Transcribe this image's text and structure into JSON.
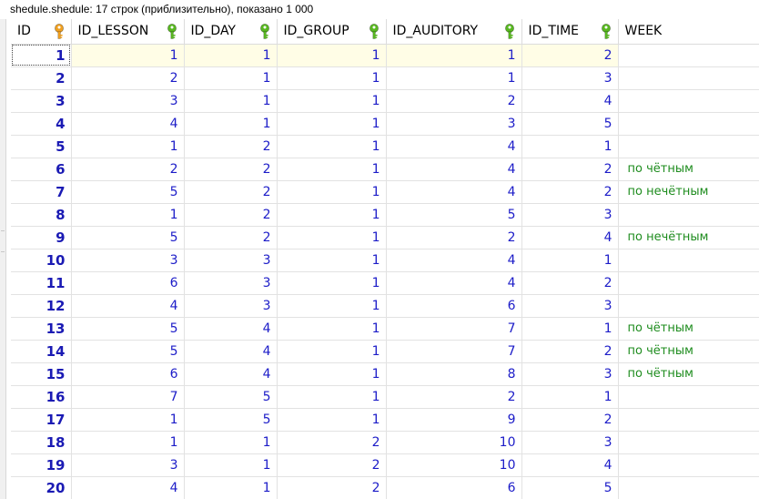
{
  "window": {
    "title": "shedule.shedule: 17 строк (приблизительно), показано 1 000"
  },
  "colors": {
    "id_text": "#1a1ab4",
    "number_text": "#1c1cc8",
    "week_text": "#1e8c1e",
    "selected_row_bg": "#fffde6",
    "primary_key_icon": "#f0a020",
    "foreign_key_icon": "#58b820"
  },
  "columns": [
    {
      "label": "ID",
      "icon": "primary-key-icon"
    },
    {
      "label": "ID_LESSON",
      "icon": "foreign-key-icon"
    },
    {
      "label": "ID_DAY",
      "icon": "foreign-key-icon"
    },
    {
      "label": "ID_GROUP",
      "icon": "foreign-key-icon"
    },
    {
      "label": "ID_AUDITORY",
      "icon": "foreign-key-icon"
    },
    {
      "label": "ID_TIME",
      "icon": "foreign-key-icon"
    },
    {
      "label": "WEEK",
      "icon": ""
    }
  ],
  "rows": [
    [
      "1",
      "1",
      "1",
      "1",
      "1",
      "2",
      ""
    ],
    [
      "2",
      "2",
      "1",
      "1",
      "1",
      "3",
      ""
    ],
    [
      "3",
      "3",
      "1",
      "1",
      "2",
      "4",
      ""
    ],
    [
      "4",
      "4",
      "1",
      "1",
      "3",
      "5",
      ""
    ],
    [
      "5",
      "1",
      "2",
      "1",
      "4",
      "1",
      ""
    ],
    [
      "6",
      "2",
      "2",
      "1",
      "4",
      "2",
      "по чётным"
    ],
    [
      "7",
      "5",
      "2",
      "1",
      "4",
      "2",
      "по нечётным"
    ],
    [
      "8",
      "1",
      "2",
      "1",
      "5",
      "3",
      ""
    ],
    [
      "9",
      "5",
      "2",
      "1",
      "2",
      "4",
      "по нечётным"
    ],
    [
      "10",
      "3",
      "3",
      "1",
      "4",
      "1",
      ""
    ],
    [
      "11",
      "6",
      "3",
      "1",
      "4",
      "2",
      ""
    ],
    [
      "12",
      "4",
      "3",
      "1",
      "6",
      "3",
      ""
    ],
    [
      "13",
      "5",
      "4",
      "1",
      "7",
      "1",
      "по чётным"
    ],
    [
      "14",
      "5",
      "4",
      "1",
      "7",
      "2",
      "по чётным"
    ],
    [
      "15",
      "6",
      "4",
      "1",
      "8",
      "3",
      "по чётным"
    ],
    [
      "16",
      "7",
      "5",
      "1",
      "2",
      "1",
      ""
    ],
    [
      "17",
      "1",
      "5",
      "1",
      "9",
      "2",
      ""
    ],
    [
      "18",
      "1",
      "1",
      "2",
      "10",
      "3",
      ""
    ],
    [
      "19",
      "3",
      "1",
      "2",
      "10",
      "4",
      ""
    ],
    [
      "20",
      "4",
      "1",
      "2",
      "6",
      "5",
      ""
    ]
  ],
  "selected_row": 0
}
